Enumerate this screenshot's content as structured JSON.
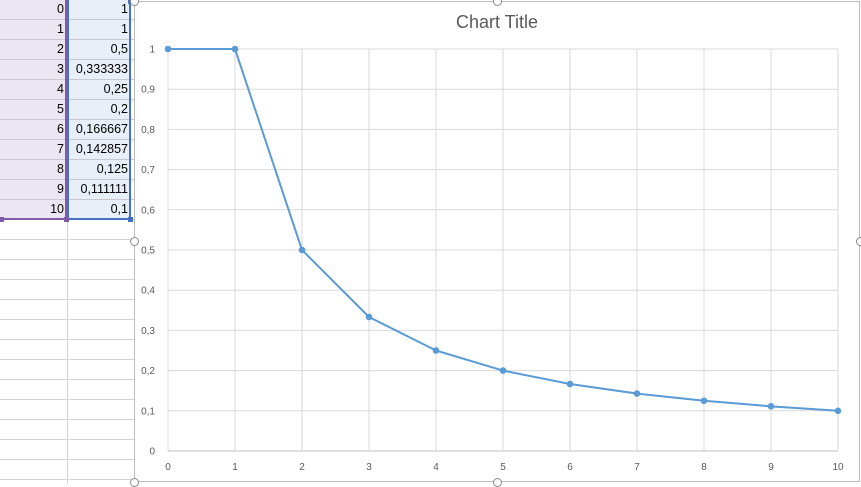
{
  "sheet": {
    "rows": [
      {
        "a": "0",
        "b": "1"
      },
      {
        "a": "1",
        "b": "1"
      },
      {
        "a": "2",
        "b": "0,5"
      },
      {
        "a": "3",
        "b": "0,333333"
      },
      {
        "a": "4",
        "b": "0,25"
      },
      {
        "a": "5",
        "b": "0,2"
      },
      {
        "a": "6",
        "b": "0,166667"
      },
      {
        "a": "7",
        "b": "0,142857"
      },
      {
        "a": "8",
        "b": "0,125"
      },
      {
        "a": "9",
        "b": "0,111111"
      },
      {
        "a": "10",
        "b": "0,1"
      }
    ],
    "selection_colors": {
      "col_a": "#7f5aa8",
      "col_b": "#4472c4"
    }
  },
  "chart_data": {
    "type": "line",
    "title": "Chart Title",
    "x": [
      0,
      1,
      2,
      3,
      4,
      5,
      6,
      7,
      8,
      9,
      10
    ],
    "series": [
      {
        "values": [
          1,
          1,
          0.5,
          0.333333,
          0.25,
          0.2,
          0.166667,
          0.142857,
          0.125,
          0.111111,
          0.1
        ]
      }
    ],
    "xlim": [
      0,
      10
    ],
    "ylim": [
      0,
      1
    ],
    "x_ticks": [
      "0",
      "1",
      "2",
      "3",
      "4",
      "5",
      "6",
      "7",
      "8",
      "9",
      "10"
    ],
    "y_ticks": [
      "0",
      "0,1",
      "0,2",
      "0,3",
      "0,4",
      "0,5",
      "0,6",
      "0,7",
      "0,8",
      "0,9",
      "1"
    ],
    "grid": true,
    "line_color": "#5b9bd5",
    "grid_color": "#d9d9d9"
  }
}
